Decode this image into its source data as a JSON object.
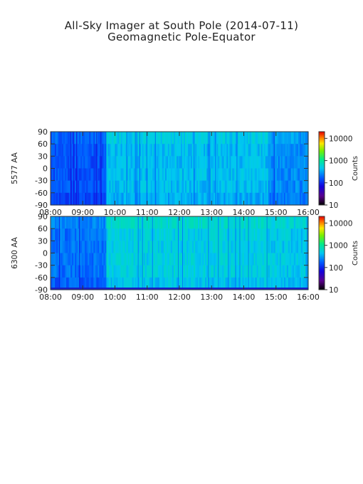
{
  "title": "All-Sky Imager at South Pole (2014-07-11)",
  "subtitle": "Geomagnetic Pole-Equator",
  "colorbar_label": "Counts",
  "chart_data": [
    {
      "type": "heatmap",
      "ylabel": "5577 AA",
      "x_ticks": [
        "08:00",
        "09:00",
        "10:00",
        "11:00",
        "12:00",
        "13:00",
        "14:00",
        "15:00",
        "16:00"
      ],
      "x_range": [
        "08:00",
        "16:00"
      ],
      "y_ticks": [
        90,
        60,
        30,
        0,
        -30,
        -60,
        -90
      ],
      "ylim": [
        -90,
        90
      ],
      "colorbar": {
        "label": "Counts",
        "scale": "log",
        "ticks": [
          10,
          100,
          1000,
          10000
        ],
        "range": [
          10,
          20000
        ]
      },
      "background_counts": {
        "08:00-09:45": 150,
        "09:45-14:45": 400,
        "14:45-16:00": 250
      }
    },
    {
      "type": "heatmap",
      "ylabel": "6300 AA",
      "x_ticks": [
        "08:00",
        "09:00",
        "10:00",
        "11:00",
        "12:00",
        "13:00",
        "14:00",
        "15:00",
        "16:00"
      ],
      "x_range": [
        "08:00",
        "16:00"
      ],
      "y_ticks": [
        90,
        60,
        30,
        0,
        -30,
        -60,
        -90
      ],
      "ylim": [
        -90,
        90
      ],
      "colorbar": {
        "label": "Counts",
        "scale": "log",
        "ticks": [
          10,
          100,
          1000,
          10000
        ],
        "range": [
          10,
          20000
        ]
      },
      "background_counts": {
        "08:00-09:45": 200,
        "09:45-14:45": 500,
        "14:45-16:00": 450
      }
    }
  ]
}
